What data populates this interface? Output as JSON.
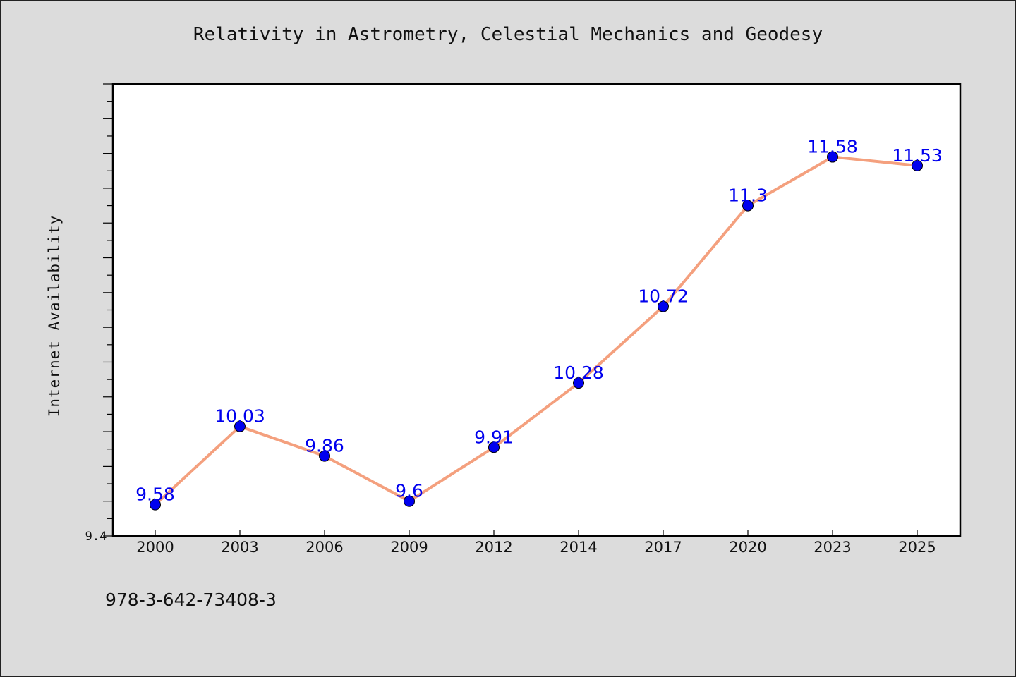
{
  "chart_data": {
    "type": "line",
    "title": "Relativity in Astrometry, Celestial Mechanics and Geodesy",
    "xlabel": "",
    "ylabel": "Internet Availability",
    "categories": [
      "2000",
      "2003",
      "2006",
      "2009",
      "2012",
      "2014",
      "2017",
      "2020",
      "2023",
      "2025"
    ],
    "series": [
      {
        "values": [
          9.58,
          10.03,
          9.86,
          9.6,
          9.91,
          10.28,
          10.72,
          11.3,
          11.58,
          11.53
        ],
        "data_labels": [
          "9.58",
          "10.03",
          "9.86",
          "9.6",
          "9.91",
          "10.28",
          "10.72",
          "11.3",
          "11.58",
          "11.53"
        ]
      }
    ],
    "y_tick_labels": [
      "9.4"
    ],
    "ylim": [
      9.4,
      12.0
    ],
    "grid": false,
    "colors": {
      "line": "#f4a07e",
      "marker": "#0000ee",
      "data_label": "#0000ee",
      "plot_background": "#ffffff",
      "figure_background": "#dcdcdc"
    }
  },
  "footer": {
    "isbn": "978-3-642-73408-3"
  }
}
